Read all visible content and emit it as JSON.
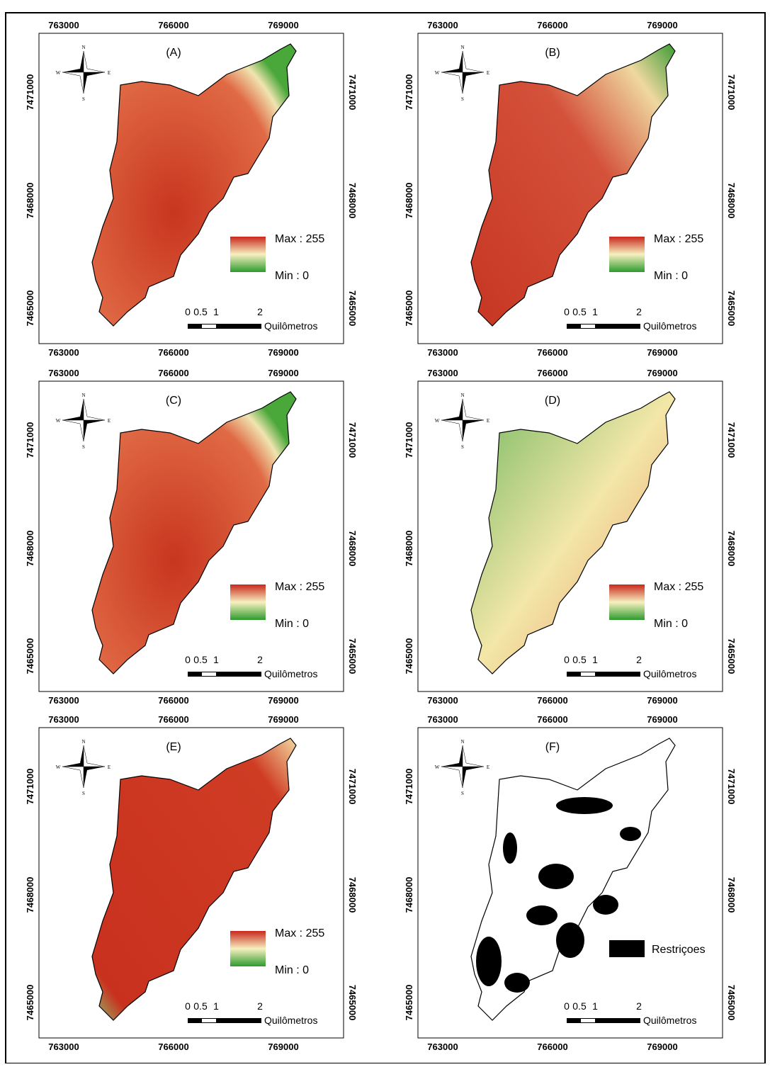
{
  "panels": [
    {
      "label": "(A)",
      "legend": [
        "Max : 255",
        "Min : 0"
      ]
    },
    {
      "label": "(B)",
      "legend": [
        "Max : 255",
        "Min : 0"
      ]
    },
    {
      "label": "(C)",
      "legend": [
        "Max : 255",
        "Min : 0"
      ]
    },
    {
      "label": "(D)",
      "legend": [
        "Max : 255",
        "Min : 0"
      ]
    },
    {
      "label": "(E)",
      "legend": [
        "Max : 255",
        "Min : 0"
      ]
    },
    {
      "label": "(F)",
      "legend": [
        "Restriçoes"
      ]
    }
  ],
  "x_ticks": [
    "763000",
    "766000",
    "769000"
  ],
  "y_ticks": [
    "7471000",
    "7468000",
    "7465000"
  ],
  "scale_bar": {
    "ticks": [
      "0",
      "0.5",
      "1",
      "2"
    ],
    "unit": "Quilômetros"
  },
  "compass": {
    "n": "N",
    "s": "S",
    "e": "E",
    "w": "W"
  }
}
